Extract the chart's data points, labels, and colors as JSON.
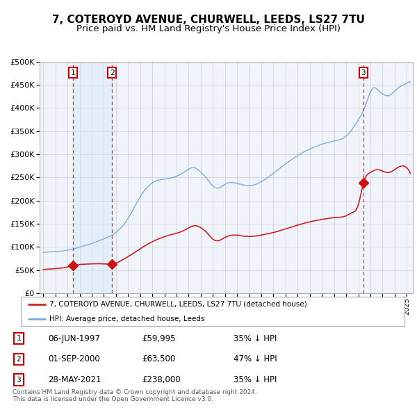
{
  "title": "7, COTEROYD AVENUE, CHURWELL, LEEDS, LS27 7TU",
  "subtitle": "Price paid vs. HM Land Registry's House Price Index (HPI)",
  "title_fontsize": 11,
  "subtitle_fontsize": 9.5,
  "ylim": [
    0,
    500000
  ],
  "yticks": [
    0,
    50000,
    100000,
    150000,
    200000,
    250000,
    300000,
    350000,
    400000,
    450000,
    500000
  ],
  "xlim_start": 1994.7,
  "xlim_end": 2025.5,
  "hpi_color": "#7aaddb",
  "price_color": "#cc2222",
  "sale_marker_color": "#cc1111",
  "vline_color": "#dd3333",
  "shade_color": "#d0e4f5",
  "grid_color": "#cccccc",
  "bg_color": "#f0f4fa",
  "sale_dates": [
    1997.44,
    2000.67,
    2021.41
  ],
  "sale_prices": [
    59995,
    63500,
    238000
  ],
  "sale_labels": [
    "1",
    "2",
    "3"
  ],
  "legend_line1": "7, COTEROYD AVENUE, CHURWELL, LEEDS, LS27 7TU (detached house)",
  "legend_line2": "HPI: Average price, detached house, Leeds",
  "table_rows": [
    [
      "1",
      "06-JUN-1997",
      "£59,995",
      "35% ↓ HPI"
    ],
    [
      "2",
      "01-SEP-2000",
      "£63,500",
      "47% ↓ HPI"
    ],
    [
      "3",
      "28-MAY-2021",
      "£238,000",
      "35% ↓ HPI"
    ]
  ],
  "footnote": "Contains HM Land Registry data © Crown copyright and database right 2024.\nThis data is licensed under the Open Government Licence v3.0.",
  "key_hpi_years": [
    1995.0,
    1996.0,
    1997.0,
    1997.5,
    1998.0,
    1999.0,
    2000.0,
    2001.0,
    2002.0,
    2003.0,
    2004.0,
    2005.0,
    2006.0,
    2007.0,
    2007.5,
    2008.0,
    2008.5,
    2009.0,
    2009.5,
    2010.0,
    2011.0,
    2012.0,
    2013.0,
    2014.0,
    2015.0,
    2016.0,
    2017.0,
    2018.0,
    2019.0,
    2020.0,
    2020.5,
    2021.0,
    2021.5,
    2022.0,
    2022.3,
    2022.6,
    2023.0,
    2023.5,
    2024.0,
    2024.5,
    2025.0
  ],
  "key_hpi_prices": [
    88000,
    90000,
    93000,
    96000,
    100000,
    108000,
    118000,
    132000,
    162000,
    208000,
    238000,
    246000,
    252000,
    268000,
    272000,
    262000,
    248000,
    232000,
    228000,
    236000,
    238000,
    233000,
    242000,
    260000,
    280000,
    298000,
    312000,
    322000,
    330000,
    340000,
    355000,
    375000,
    400000,
    435000,
    445000,
    440000,
    432000,
    428000,
    438000,
    448000,
    455000
  ],
  "key_prop_years": [
    1995.0,
    1996.0,
    1997.0,
    1997.44,
    1998.5,
    1999.5,
    2000.0,
    2000.67,
    2001.5,
    2002.5,
    2003.5,
    2004.5,
    2005.5,
    2006.5,
    2007.0,
    2007.5,
    2008.0,
    2008.5,
    2009.0,
    2009.5,
    2010.0,
    2011.0,
    2012.0,
    2013.0,
    2014.0,
    2015.0,
    2016.0,
    2017.0,
    2018.0,
    2019.0,
    2020.0,
    2020.5,
    2021.0,
    2021.41,
    2022.0,
    2022.5,
    2023.0,
    2023.5,
    2024.0,
    2025.0
  ],
  "key_prop_prices": [
    51000,
    53000,
    57000,
    59995,
    63000,
    64000,
    64000,
    63500,
    72000,
    88000,
    105000,
    118000,
    127000,
    135000,
    142000,
    147000,
    143000,
    132000,
    118000,
    115000,
    122000,
    127000,
    124000,
    127000,
    132000,
    140000,
    148000,
    155000,
    160000,
    164000,
    168000,
    175000,
    192000,
    238000,
    262000,
    268000,
    265000,
    262000,
    268000,
    272000
  ]
}
